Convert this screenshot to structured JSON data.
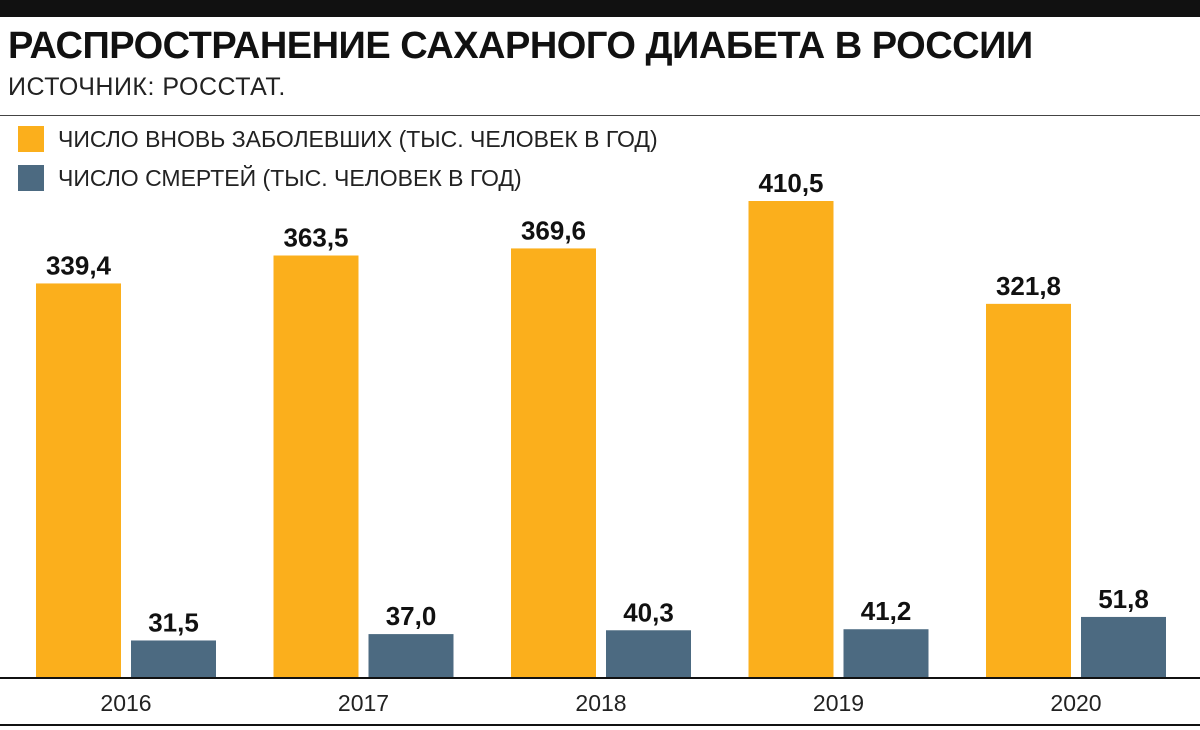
{
  "header": {
    "title": "РАСПРОСТРАНЕНИЕ САХАРНОГО ДИАБЕТА В РОССИИ",
    "subtitle": "ИСТОЧНИК: РОССТАТ."
  },
  "chart_data": {
    "type": "bar",
    "title": "РАСПРОСТРАНЕНИЕ САХАРНОГО ДИАБЕТА В РОССИИ",
    "subtitle": "ИСТОЧНИК: РОССТАТ.",
    "categories": [
      "2016",
      "2017",
      "2018",
      "2019",
      "2020"
    ],
    "series": [
      {
        "name": "ЧИСЛО ВНОВЬ ЗАБОЛЕВШИХ (ТЫС. ЧЕЛОВЕК В ГОД)",
        "color": "#FBAF1C",
        "values": [
          339.4,
          363.5,
          369.6,
          410.5,
          321.8
        ],
        "labels": [
          "339,4",
          "363,5",
          "369,6",
          "410,5",
          "321,8"
        ]
      },
      {
        "name": "ЧИСЛО СМЕРТЕЙ (ТЫС. ЧЕЛОВЕК В ГОД)",
        "color": "#4C6A81",
        "values": [
          31.5,
          37.0,
          40.3,
          41.2,
          51.8
        ],
        "labels": [
          "31,5",
          "37,0",
          "40,3",
          "41,2",
          "51,8"
        ]
      }
    ],
    "xlabel": "",
    "ylabel": "",
    "ylim": [
      0,
      410.5
    ],
    "grid": false,
    "legend": "top-left"
  }
}
